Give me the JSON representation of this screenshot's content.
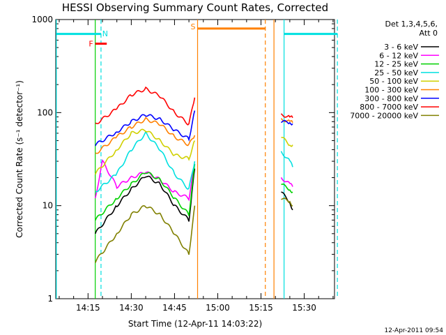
{
  "chart_data": {
    "type": "line",
    "title": "HESSI Observing Summary Count Rates, Corrected",
    "xlabel": "Start Time (12-Apr-11 14:03:22)",
    "ylabel": "Corrected Count Rate (s⁻¹ detector⁻¹)",
    "yscale": "log",
    "ylim": [
      1,
      1000
    ],
    "y_ticks": [
      "1",
      "10",
      "100",
      "1000"
    ],
    "x_range_minutes": [
      14.2,
      43.0
    ],
    "x_ticks": [
      {
        "label": "14:15",
        "minute": 15
      },
      {
        "label": "14:30",
        "minute": 30
      },
      {
        "label": "14:45",
        "minute": 45
      },
      {
        "label": "15:00",
        "minute": 60
      },
      {
        "label": "15:15",
        "minute": 75
      },
      {
        "label": "15:30",
        "minute": 90
      }
    ],
    "x_range": [
      "14:03:22",
      "15:43:00"
    ],
    "legend_header": "Det 1,3,4,5,6,\nAtt 0",
    "legend_position": "top-right, outside plot",
    "series": [
      {
        "name": "3 - 6 keV",
        "color": "#000000",
        "x": [
          "14:17:30",
          "14:25:00",
          "14:30:00",
          "14:35:00",
          "14:40:00",
          "14:45:00",
          "14:50:00",
          "14:52:00",
          "15:22:00",
          "15:25:00",
          "15:26:00"
        ],
        "values": [
          5,
          10,
          15,
          21,
          17,
          10,
          7,
          25,
          14,
          11,
          9
        ]
      },
      {
        "name": "6 - 12 keV",
        "color": "#ff00ff",
        "x": [
          "14:17:30",
          "14:20:00",
          "14:25:00",
          "14:30:00",
          "14:35:00",
          "14:40:00",
          "14:45:00",
          "14:50:00",
          "14:52:00",
          "15:22:00",
          "15:25:00",
          "15:26:00"
        ],
        "values": [
          12,
          30,
          16,
          20,
          23,
          19,
          14,
          12,
          28,
          20,
          17,
          16
        ]
      },
      {
        "name": "12 - 25 keV",
        "color": "#00d000",
        "x": [
          "14:17:30",
          "14:25:00",
          "14:30:00",
          "14:35:00",
          "14:40:00",
          "14:45:00",
          "14:50:00",
          "14:52:00",
          "15:22:00",
          "15:25:00",
          "15:26:00"
        ],
        "values": [
          7,
          12,
          17,
          23,
          19,
          12,
          8,
          28,
          17,
          15,
          14
        ]
      },
      {
        "name": "25 - 50 keV",
        "color": "#00e0e0",
        "x": [
          "14:17:30",
          "14:25:00",
          "14:30:00",
          "14:35:00",
          "14:40:00",
          "14:45:00",
          "14:50:00",
          "14:52:00",
          "15:22:00",
          "15:25:00",
          "15:26:00"
        ],
        "values": [
          14,
          22,
          40,
          60,
          40,
          22,
          15,
          30,
          38,
          30,
          26
        ]
      },
      {
        "name": "50 - 100 keV",
        "color": "#d0d000",
        "x": [
          "14:17:30",
          "14:25:00",
          "14:30:00",
          "14:35:00",
          "14:40:00",
          "14:45:00",
          "14:50:00",
          "14:52:00",
          "15:22:00",
          "15:25:00",
          "15:26:00"
        ],
        "values": [
          22,
          40,
          60,
          65,
          50,
          35,
          32,
          50,
          55,
          45,
          45
        ]
      },
      {
        "name": "100 - 300 keV",
        "color": "#ff8000",
        "x": [
          "14:17:30",
          "14:25:00",
          "14:30:00",
          "14:35:00",
          "14:40:00",
          "14:45:00",
          "14:50:00",
          "14:52:00",
          "15:22:00",
          "15:25:00",
          "15:26:00"
        ],
        "values": [
          36,
          55,
          70,
          85,
          75,
          55,
          45,
          57,
          85,
          80,
          78
        ]
      },
      {
        "name": "300 - 800 keV",
        "color": "#0000ff",
        "x": [
          "14:17:30",
          "14:25:00",
          "14:30:00",
          "14:35:00",
          "14:40:00",
          "14:45:00",
          "14:50:00",
          "14:52:00",
          "15:22:00",
          "15:25:00",
          "15:26:00"
        ],
        "values": [
          45,
          62,
          80,
          95,
          85,
          65,
          52,
          105,
          80,
          78,
          76
        ]
      },
      {
        "name": "800 - 7000 keV",
        "color": "#ff0000",
        "x": [
          "14:17:30",
          "14:25:00",
          "14:30:00",
          "14:35:00",
          "14:40:00",
          "14:45:00",
          "14:50:00",
          "14:52:00",
          "15:22:00",
          "15:25:00",
          "15:26:00"
        ],
        "values": [
          75,
          110,
          155,
          180,
          150,
          100,
          75,
          145,
          95,
          90,
          88
        ]
      },
      {
        "name": "7000 - 20000 keV",
        "color": "#808000",
        "x": [
          "14:17:30",
          "14:25:00",
          "14:30:00",
          "14:35:00",
          "14:40:00",
          "14:45:00",
          "14:50:00",
          "14:52:00",
          "15:22:00",
          "15:25:00",
          "15:26:00"
        ],
        "values": [
          2.5,
          5,
          8,
          10,
          8,
          5,
          3,
          10,
          12,
          11,
          10
        ]
      }
    ],
    "intervals": [
      {
        "label": "",
        "color": "#00e0e0",
        "start": "14:04:00",
        "end": "14:19:30",
        "y": 700
      },
      {
        "label": "F",
        "color": "#ff0000",
        "start": "14:17:30",
        "end": "14:21:30",
        "y": 550
      },
      {
        "label": "N",
        "color": "#00e0e0",
        "start": "14:19:30",
        "end": "14:19:30",
        "y": 0
      },
      {
        "label": "S",
        "color": "#ff8000",
        "start": "14:53:00",
        "end": "15:16:30",
        "y": 800
      },
      {
        "label": "",
        "color": "#00e0e0",
        "start": "15:23:00",
        "end": "15:41:30",
        "y": 700
      }
    ],
    "vertical_markers": [
      {
        "time": "14:04:00",
        "color": "#00e0e0",
        "style": "solid"
      },
      {
        "time": "14:19:30",
        "color": "#00e0e0",
        "style": "dashed"
      },
      {
        "time": "14:17:30",
        "color": "#00d000",
        "style": "solid"
      },
      {
        "time": "14:53:00",
        "color": "#ff8000",
        "style": "solid"
      },
      {
        "time": "15:16:30",
        "color": "#ff8000",
        "style": "dashed"
      },
      {
        "time": "15:19:30",
        "color": "#ff8000",
        "style": "solid"
      },
      {
        "time": "15:23:00",
        "color": "#00e0e0",
        "style": "solid"
      },
      {
        "time": "15:41:30",
        "color": "#00e0e0",
        "style": "dashed"
      }
    ],
    "footer": "12-Apr-2011 09:54"
  }
}
